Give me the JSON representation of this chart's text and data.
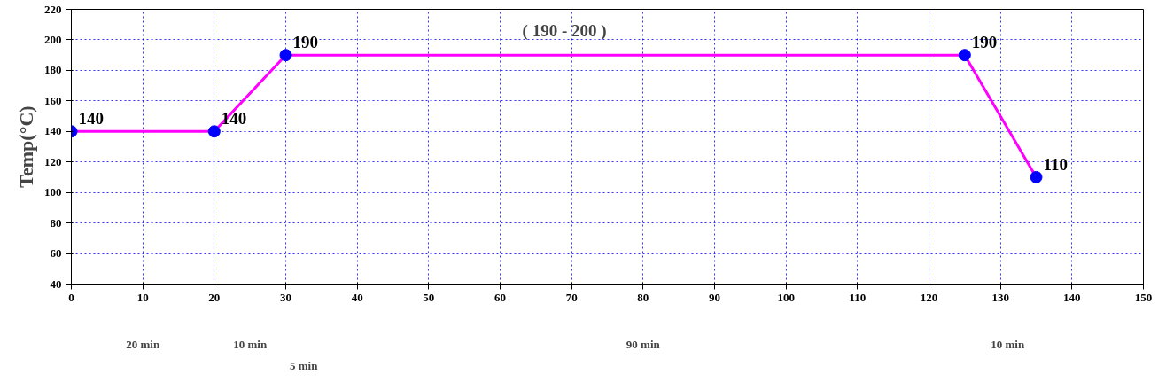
{
  "chart_data": {
    "type": "line",
    "ylabel": "Temp(°C)",
    "x": [
      0,
      20,
      30,
      125,
      135
    ],
    "series": [
      {
        "color": "#ff00ff",
        "colors": [
          "#0000ff",
          "#0000ff",
          "#0000ff",
          "#0000ff",
          "#0000ff"
        ],
        "values": [
          140,
          140,
          190,
          190,
          110
        ]
      }
    ],
    "marker": "circle",
    "data_labels": true,
    "xlim": [
      0,
      150
    ],
    "xticks": [
      0,
      10,
      20,
      30,
      40,
      50,
      60,
      70,
      80,
      90,
      100,
      110,
      120,
      130,
      140,
      150
    ],
    "ylim": [
      40,
      220
    ],
    "yticks": [
      40,
      60,
      80,
      100,
      120,
      140,
      160,
      180,
      200,
      220
    ],
    "grid": true,
    "annotations": [
      "( 190 - 200 )",
      "20 min",
      "10 min",
      "5 min",
      "90 min",
      "10 min"
    ]
  }
}
